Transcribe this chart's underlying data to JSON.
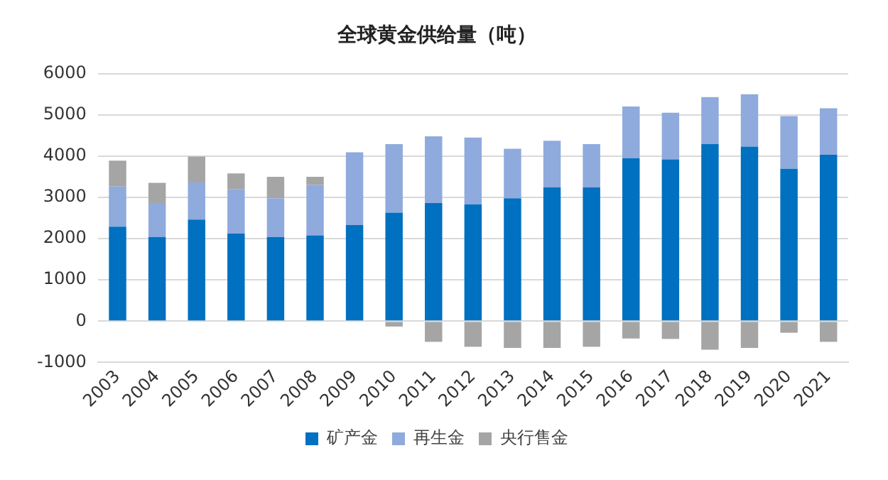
{
  "chart_data": {
    "type": "bar",
    "title": "全球黄金供给量（吨）",
    "stacked": true,
    "categories": [
      "2003",
      "2004",
      "2005",
      "2006",
      "2007",
      "2008",
      "2009",
      "2010",
      "2011",
      "2012",
      "2013",
      "2014",
      "2015",
      "2016",
      "2017",
      "2018",
      "2019",
      "2020",
      "2021"
    ],
    "series": [
      {
        "name": "矿产金",
        "color": "#0070c0",
        "values": [
          2290,
          2040,
          2460,
          2120,
          2040,
          2080,
          2330,
          2630,
          2860,
          2830,
          2980,
          3240,
          3240,
          3950,
          3920,
          4290,
          4230,
          3690,
          4030
        ]
      },
      {
        "name": "再生金",
        "color": "#8faadc",
        "values": [
          970,
          820,
          900,
          1080,
          940,
          1220,
          1760,
          1660,
          1620,
          1620,
          1200,
          1130,
          1050,
          1250,
          1130,
          1140,
          1270,
          1280,
          1130
        ]
      },
      {
        "name": "央行售金",
        "color": "#a5a5a5",
        "values": [
          630,
          490,
          630,
          380,
          520,
          200,
          0,
          -130,
          -500,
          -620,
          -650,
          -650,
          -620,
          -420,
          -430,
          -690,
          -650,
          -280,
          -500
        ]
      }
    ],
    "ylim": [
      -1000,
      6000
    ],
    "yticks": [
      -1000,
      0,
      1000,
      2000,
      3000,
      4000,
      5000,
      6000
    ],
    "grid": "y",
    "legend": "bottom"
  }
}
